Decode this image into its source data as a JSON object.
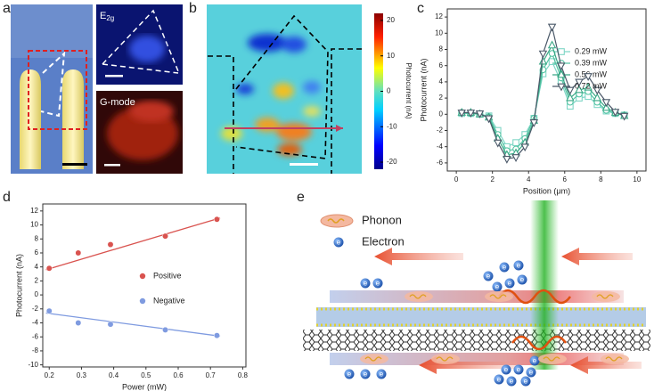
{
  "panel_labels": [
    "a",
    "b",
    "c",
    "d",
    "e"
  ],
  "panel_a": {
    "raman_label_main": "E",
    "raman_label_sub": "2g",
    "gmode_label": "G-mode"
  },
  "panel_b": {
    "colorbar": {
      "label": "Photocurrent (nA)",
      "lim": [
        -22,
        22
      ],
      "ticks": [
        20,
        10,
        0,
        -10,
        -20
      ]
    }
  },
  "panel_e": {
    "legend": [
      "Phonon",
      "Electron"
    ],
    "electron_symbol": "e"
  },
  "chart_data": [
    {
      "type": "line",
      "xlabel": "Position (μm)",
      "ylabel": "Photocurrent (nA)",
      "x": [
        0.3,
        0.8,
        1.3,
        1.8,
        2.3,
        2.8,
        3.3,
        3.8,
        4.3,
        4.8,
        5.3,
        5.8,
        6.3,
        6.8,
        7.3,
        7.8,
        8.3,
        8.8,
        9.3
      ],
      "xlim": [
        -0.5,
        10.5
      ],
      "xticks": [
        0,
        2,
        4,
        6,
        8,
        10
      ],
      "ylim": [
        -7,
        13
      ],
      "yticks": [
        -6,
        -4,
        -2,
        0,
        2,
        4,
        6,
        8,
        10,
        12
      ],
      "legend": "upper-right",
      "series": [
        {
          "name": "0.29 mW",
          "color": "#7fd6c6",
          "marker": "square",
          "values": [
            0.1,
            0.1,
            0,
            -0.2,
            -2,
            -4,
            -3.5,
            -2.5,
            -0.5,
            5,
            6.5,
            4,
            1,
            2,
            2.2,
            1.2,
            0.4,
            0.1,
            -0.1
          ]
        },
        {
          "name": "0.39 mW",
          "color": "#55c4a4",
          "marker": "circle",
          "values": [
            0.2,
            0.1,
            0,
            -0.3,
            -2.5,
            -4.5,
            -4.3,
            -3,
            -0.5,
            5.5,
            7.5,
            4.5,
            1.5,
            2.5,
            2.8,
            1.5,
            0.5,
            0.1,
            -0.1
          ]
        },
        {
          "name": "0.56 mW",
          "color": "#3aa886",
          "marker": "triangle-up",
          "values": [
            0.2,
            0.2,
            0,
            -0.4,
            -3,
            -5,
            -4.8,
            -3.5,
            -0.8,
            6.5,
            8.5,
            5,
            2,
            3,
            3.3,
            2,
            0.8,
            0.2,
            -0.2
          ]
        },
        {
          "name": "0.72 mW",
          "color": "#4a5868",
          "marker": "triangle-down",
          "values": [
            0.2,
            0.2,
            0.1,
            -0.5,
            -3.5,
            -5.5,
            -5.3,
            -4,
            -1,
            7.5,
            10.8,
            6,
            3,
            4,
            4.7,
            3,
            1.5,
            0.3,
            -0.2
          ]
        }
      ]
    },
    {
      "type": "scatter",
      "xlabel": "Power (mW)",
      "ylabel": "Photocurrent (nA)",
      "x": [
        0.2,
        0.29,
        0.39,
        0.56,
        0.72
      ],
      "xlim": [
        0.18,
        0.81
      ],
      "xticks": [
        0.2,
        0.3,
        0.4,
        0.5,
        0.6,
        0.7,
        0.8
      ],
      "ylim": [
        -10.3,
        13
      ],
      "yticks": [
        -10,
        -8,
        -6,
        -4,
        -2,
        0,
        2,
        4,
        6,
        8,
        10,
        12
      ],
      "legend": "center-right",
      "series": [
        {
          "name": "Positive",
          "color": "#d9534f",
          "values": [
            3.8,
            6,
            7.2,
            8.4,
            10.8
          ],
          "fit_x": [
            0.19,
            0.73
          ],
          "fit": [
            3.6,
            11
          ]
        },
        {
          "name": "Negative",
          "color": "#7f9be0",
          "values": [
            -2.3,
            -4,
            -4.2,
            -5,
            -5.8
          ],
          "fit_x": [
            0.19,
            0.73
          ],
          "fit": [
            -2.6,
            -5.9
          ]
        }
      ]
    }
  ]
}
